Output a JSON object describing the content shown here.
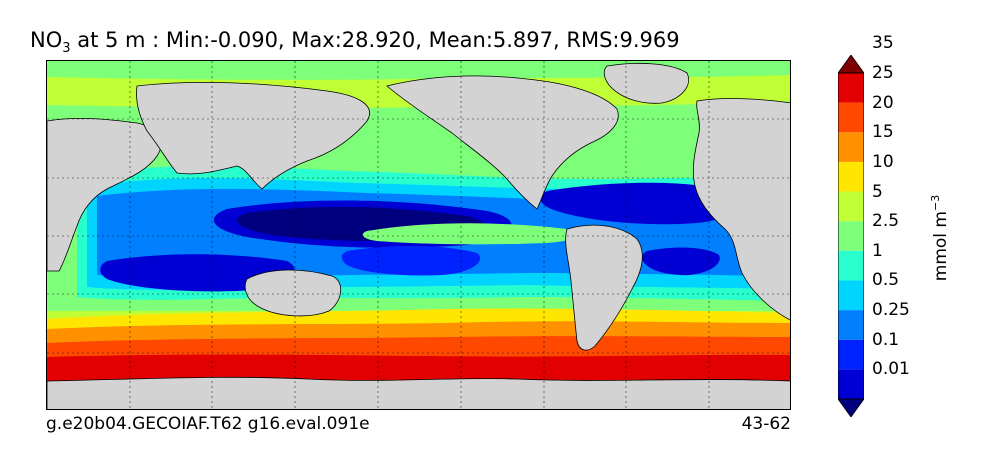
{
  "header": {
    "title_main": "NO",
    "title_sub": "3",
    "title_rest": " at 5 m : Min:-0.090, Max:28.920, Mean:5.897, RMS:9.969"
  },
  "footer": {
    "left": "g.e20b04.GECOIAF.T62 g16.eval.091e",
    "right": "43-62"
  },
  "colorbar": {
    "unit_base": "mmol m",
    "unit_exp": "−3",
    "levels": [
      "0.01",
      "0.1",
      "0.25",
      "0.5",
      "1",
      "2.5",
      "5",
      "10",
      "15",
      "20",
      "25",
      "35"
    ],
    "colors": [
      "#00007f",
      "#0000d4",
      "#0022ff",
      "#0080ff",
      "#00d4ff",
      "#29ffce",
      "#7dff7a",
      "#c0ff36",
      "#ffe600",
      "#ff9100",
      "#ff4800",
      "#e30000",
      "#7f0000"
    ]
  },
  "chart_data": {
    "type": "heatmap",
    "variable": "NO3",
    "depth": "5 m",
    "stats": {
      "min": -0.09,
      "max": 28.92,
      "mean": 5.897,
      "rms": 9.969
    },
    "units": "mmol m-3",
    "colorbar_levels": [
      0.01,
      0.1,
      0.25,
      0.5,
      1,
      2.5,
      5,
      10,
      15,
      20,
      25,
      35
    ],
    "grid": "dashed meridians/parallels",
    "land_color": "#d3d3d3",
    "contours": "black contour lines at colorbar levels"
  }
}
